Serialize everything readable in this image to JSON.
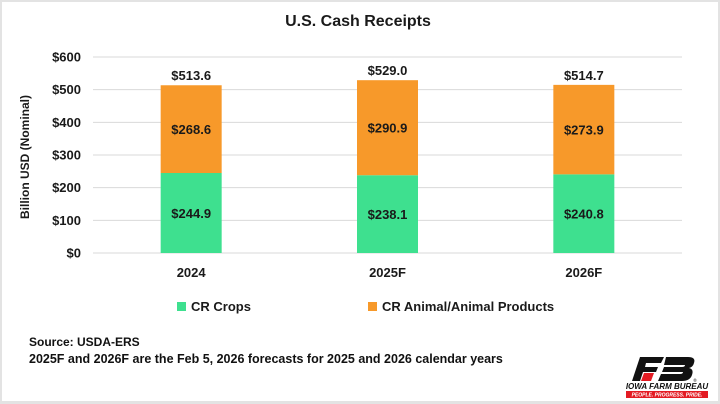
{
  "chart_data": {
    "type": "bar",
    "stacked": true,
    "title": "U.S. Cash Receipts",
    "xlabel": "",
    "ylabel": "Billion USD  (Nominal)",
    "ylim": [
      0,
      600
    ],
    "yticks": [
      0,
      100,
      200,
      300,
      400,
      500,
      600
    ],
    "ytick_labels": [
      "$0",
      "$100",
      "$200",
      "$300",
      "$400",
      "$500",
      "$600"
    ],
    "grid": true,
    "legend_position": "bottom",
    "categories": [
      "2024",
      "2025F",
      "2026F"
    ],
    "series": [
      {
        "name": "CR Crops",
        "color": "#3ee08f",
        "values": [
          244.9,
          238.1,
          240.8
        ],
        "labels": [
          "$244.9",
          "$238.1",
          "$240.8"
        ]
      },
      {
        "name": "CR Animal/Animal Products",
        "color": "#f7992a",
        "values": [
          268.6,
          290.9,
          273.9
        ],
        "labels": [
          "$268.6",
          "$290.9",
          "$273.9"
        ]
      }
    ],
    "totals": [
      513.6,
      529.0,
      514.7
    ],
    "total_labels": [
      "$513.6",
      "$529.0",
      "$514.7"
    ]
  },
  "notes": {
    "source": "Source: USDA-ERS",
    "forecast": "2025F and 2026F are the Feb 5, 2026 forecasts for 2025 and 2026 calendar years"
  },
  "logo": {
    "name": "IOWA FARM BUREAU",
    "tagline": "PEOPLE. PROGRESS. PRIDE.",
    "accent_color": "#e31b23"
  }
}
